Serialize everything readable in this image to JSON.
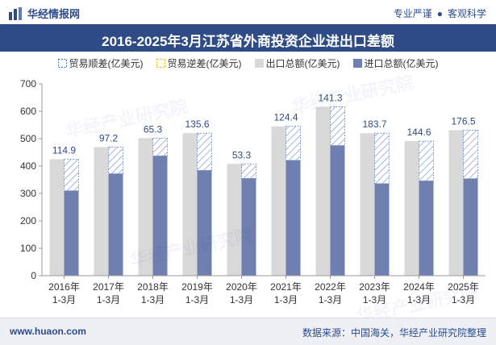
{
  "header": {
    "brand": "华经情报网",
    "tag_a": "专业严谨",
    "tag_sep": "●",
    "tag_b": "客观科学"
  },
  "footer": {
    "site": "www.huaon.com",
    "source": "数据来源：中国海关，华经产业研究院整理"
  },
  "watermark_text": "华经产业研究院",
  "colors": {
    "surplus": "#3d6cc0",
    "deficit": "#e8b400",
    "export": "#d9d9d9",
    "import": "#6e7fb0",
    "title_bg": "#2e4b86"
  },
  "chart_data": {
    "type": "bar",
    "title": "2016-2025年3月江苏省外商投资企业进出口差额",
    "categories": [
      [
        "2016年",
        "1-3月"
      ],
      [
        "2017年",
        "1-3月"
      ],
      [
        "2018年",
        "1-3月"
      ],
      [
        "2019年",
        "1-3月"
      ],
      [
        "2020年",
        "1-3月"
      ],
      [
        "2021年",
        "1-3月"
      ],
      [
        "2022年",
        "1-3月"
      ],
      [
        "2023年",
        "1-3月"
      ],
      [
        "2024年",
        "1-3月"
      ],
      [
        "2025年",
        "1-3月"
      ]
    ],
    "ylim": [
      0,
      700
    ],
    "yticks": [
      0,
      100,
      200,
      300,
      400,
      500,
      600,
      700
    ],
    "legend_position": "top-center",
    "grid": false,
    "series": [
      {
        "name": "贸易顺差(亿美元)",
        "values": [
          114.9,
          97.2,
          65.3,
          135.6,
          53.3,
          124.4,
          141.3,
          183.7,
          144.6,
          176.5
        ]
      },
      {
        "name": "贸易逆差(亿美元)",
        "values": [
          0,
          0,
          0,
          0,
          0,
          0,
          0,
          0,
          0,
          0
        ]
      },
      {
        "name": "出口总额(亿美元)",
        "values": [
          425,
          469,
          502,
          520,
          408,
          545,
          616,
          520,
          491,
          531
        ]
      },
      {
        "name": "进口总额(亿美元)",
        "values": [
          310,
          372,
          437,
          384,
          355,
          421,
          475,
          336,
          346,
          354
        ]
      }
    ],
    "data_labels": [
      "114.9",
      "97.2",
      "65.3",
      "135.6",
      "53.3",
      "124.4",
      "141.3",
      "183.7",
      "144.6",
      "176.5"
    ]
  }
}
